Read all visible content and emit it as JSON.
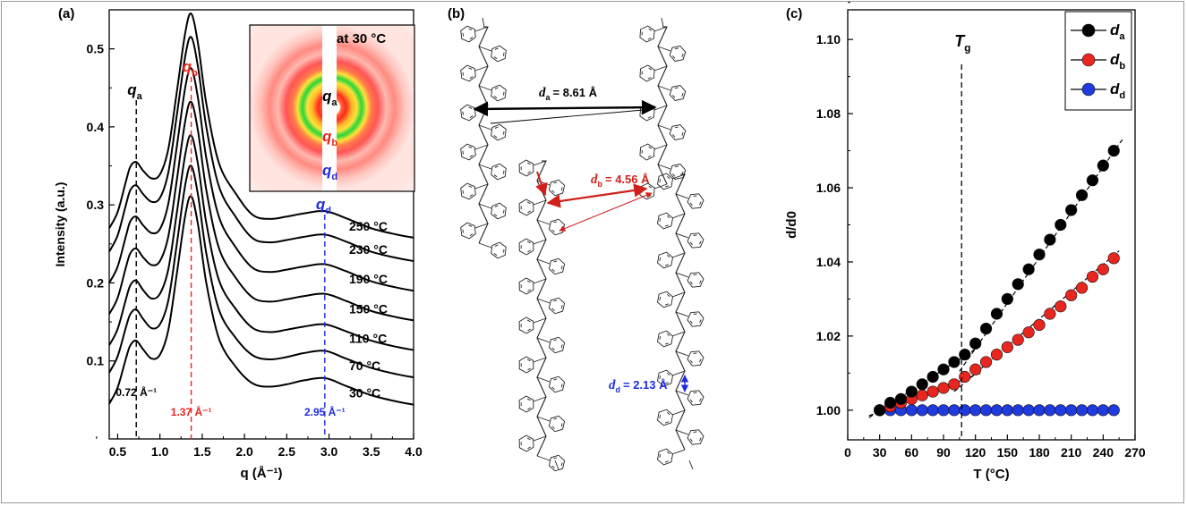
{
  "panels": {
    "a": {
      "label": "(a)",
      "chart_data": {
        "type": "line",
        "xlabel": "q (Å⁻¹)",
        "ylabel": "Intensity (a.u.)",
        "xlim": [
          0.4,
          4.0
        ],
        "ylim": [
          0.0,
          0.55
        ],
        "xticks": [
          "0.5",
          "1.0",
          "1.5",
          "2.0",
          "2.5",
          "3.0",
          "3.5",
          "4.0"
        ],
        "yticks": [
          "0.1",
          "0.2",
          "0.3",
          "0.4",
          "0.5"
        ],
        "x": [
          0.4,
          0.5,
          0.6,
          0.65,
          0.72,
          0.8,
          0.9,
          1.0,
          1.1,
          1.2,
          1.3,
          1.37,
          1.45,
          1.55,
          1.7,
          1.9,
          2.1,
          2.3,
          2.5,
          2.7,
          2.95,
          3.2,
          3.5,
          3.8,
          4.0
        ],
        "series": [
          {
            "name": "30 °C",
            "values": [
              0.045,
              0.066,
              0.104,
              0.12,
              0.126,
              0.115,
              0.103,
              0.108,
              0.14,
              0.212,
              0.287,
              0.311,
              0.275,
              0.199,
              0.128,
              0.092,
              0.071,
              0.067,
              0.07,
              0.075,
              0.078,
              0.068,
              0.056,
              0.048,
              0.044
            ]
          },
          {
            "name": "70 °C",
            "values": [
              0.085,
              0.106,
              0.144,
              0.16,
              0.166,
              0.154,
              0.142,
              0.147,
              0.178,
              0.25,
              0.326,
              0.35,
              0.313,
              0.237,
              0.165,
              0.129,
              0.107,
              0.102,
              0.105,
              0.11,
              0.113,
              0.103,
              0.091,
              0.083,
              0.079
            ]
          },
          {
            "name": "110 °C",
            "values": [
              0.12,
              0.141,
              0.18,
              0.197,
              0.203,
              0.191,
              0.18,
              0.186,
              0.218,
              0.29,
              0.365,
              0.389,
              0.352,
              0.276,
              0.203,
              0.166,
              0.142,
              0.137,
              0.14,
              0.144,
              0.147,
              0.138,
              0.126,
              0.118,
              0.114
            ]
          },
          {
            "name": "150 °C",
            "values": [
              0.16,
              0.181,
              0.221,
              0.238,
              0.244,
              0.233,
              0.223,
              0.228,
              0.26,
              0.332,
              0.408,
              0.432,
              0.395,
              0.318,
              0.244,
              0.206,
              0.181,
              0.176,
              0.179,
              0.183,
              0.186,
              0.177,
              0.164,
              0.156,
              0.152
            ]
          },
          {
            "name": "190 °C",
            "values": [
              0.2,
              0.221,
              0.261,
              0.279,
              0.285,
              0.274,
              0.264,
              0.269,
              0.302,
              0.375,
              0.451,
              0.475,
              0.437,
              0.359,
              0.284,
              0.245,
              0.219,
              0.214,
              0.217,
              0.221,
              0.224,
              0.215,
              0.202,
              0.194,
              0.19
            ]
          },
          {
            "name": "230 °C",
            "values": [
              0.24,
              0.261,
              0.301,
              0.319,
              0.325,
              0.314,
              0.304,
              0.309,
              0.342,
              0.415,
              0.491,
              0.515,
              0.477,
              0.399,
              0.323,
              0.284,
              0.257,
              0.252,
              0.255,
              0.259,
              0.262,
              0.253,
              0.24,
              0.232,
              0.228
            ]
          },
          {
            "name": "250 °C",
            "values": [
              0.27,
              0.291,
              0.331,
              0.349,
              0.355,
              0.344,
              0.334,
              0.339,
              0.372,
              0.445,
              0.521,
              0.545,
              0.507,
              0.429,
              0.353,
              0.314,
              0.287,
              0.282,
              0.285,
              0.289,
              0.292,
              0.283,
              0.27,
              0.262,
              0.258
            ]
          }
        ],
        "peaks": [
          {
            "symbol": "q",
            "sub": "a",
            "position": 0.72,
            "value_label": "0.72 Å⁻¹",
            "color": "#000000"
          },
          {
            "symbol": "q",
            "sub": "b",
            "position": 1.37,
            "value_label": "1.37 Å⁻¹",
            "color": "#e8261f"
          },
          {
            "symbol": "q",
            "sub": "d",
            "position": 2.95,
            "value_label": "2.95 Å⁻¹",
            "color": "#1f2cde"
          }
        ]
      },
      "inset": {
        "title": "at 30 °C",
        "rings": [
          {
            "symbol": "q",
            "sub": "a",
            "color": "#000000"
          },
          {
            "symbol": "q",
            "sub": "b",
            "color": "#e8261f"
          },
          {
            "symbol": "q",
            "sub": "d",
            "color": "#1f2cde"
          }
        ]
      }
    },
    "b": {
      "label": "(b)",
      "distances": [
        {
          "symbol": "d",
          "sub": "a",
          "value": "= 8.61 Å",
          "color": "#000000"
        },
        {
          "symbol": "d",
          "sub": "b",
          "value": "= 4.56 Å",
          "color": "#d0201a"
        },
        {
          "symbol": "d",
          "sub": "d",
          "value": "= 2.13 Å",
          "color": "#1f2cde"
        }
      ]
    },
    "c": {
      "label": "(c)",
      "chart_data": {
        "type": "scatter",
        "xlabel": "T (°C)",
        "ylabel": "d/d0",
        "xlim": [
          0,
          270
        ],
        "ylim": [
          0.992,
          1.108
        ],
        "xticks": [
          "0",
          "30",
          "60",
          "90",
          "120",
          "150",
          "180",
          "210",
          "240",
          "270"
        ],
        "yticks": [
          "1.00",
          "1.02",
          "1.04",
          "1.06",
          "1.08",
          "1.10"
        ],
        "x": [
          30,
          40,
          50,
          60,
          70,
          80,
          90,
          100,
          110,
          120,
          130,
          140,
          150,
          160,
          170,
          180,
          190,
          200,
          210,
          220,
          230,
          240,
          250
        ],
        "series": [
          {
            "name": "da",
            "color": "#000000",
            "values": [
              1.0,
              1.002,
              1.003,
              1.005,
              1.007,
              1.009,
              1.011,
              1.013,
              1.015,
              1.018,
              1.022,
              1.026,
              1.03,
              1.034,
              1.038,
              1.042,
              1.046,
              1.05,
              1.054,
              1.058,
              1.062,
              1.066,
              1.07
            ]
          },
          {
            "name": "db",
            "color": "#e8261f",
            "values": [
              1.0,
              1.001,
              1.002,
              1.003,
              1.004,
              1.005,
              1.006,
              1.007,
              1.009,
              1.011,
              1.013,
              1.015,
              1.017,
              1.019,
              1.021,
              1.023,
              1.026,
              1.028,
              1.031,
              1.033,
              1.036,
              1.038,
              1.041
            ]
          },
          {
            "name": "dd",
            "color": "#1f3bde",
            "values": [
              1.0,
              1.0,
              1.0,
              1.0,
              1.0,
              1.0,
              1.0,
              1.0,
              1.0,
              1.0,
              1.0,
              1.0,
              1.0,
              1.0,
              1.0,
              1.0,
              1.0,
              1.0,
              1.0,
              1.0,
              1.0,
              1.0,
              1.0
            ]
          }
        ],
        "tg_marker": {
          "symbol": "T",
          "sub": "g",
          "x": 107
        },
        "legend": {
          "placement": "top-right",
          "entries": [
            {
              "symbol": "d",
              "sub": "a",
              "color": "#000000"
            },
            {
              "symbol": "d",
              "sub": "b",
              "color": "#e8261f"
            },
            {
              "symbol": "d",
              "sub": "d",
              "color": "#1f3bde"
            }
          ]
        }
      }
    }
  }
}
